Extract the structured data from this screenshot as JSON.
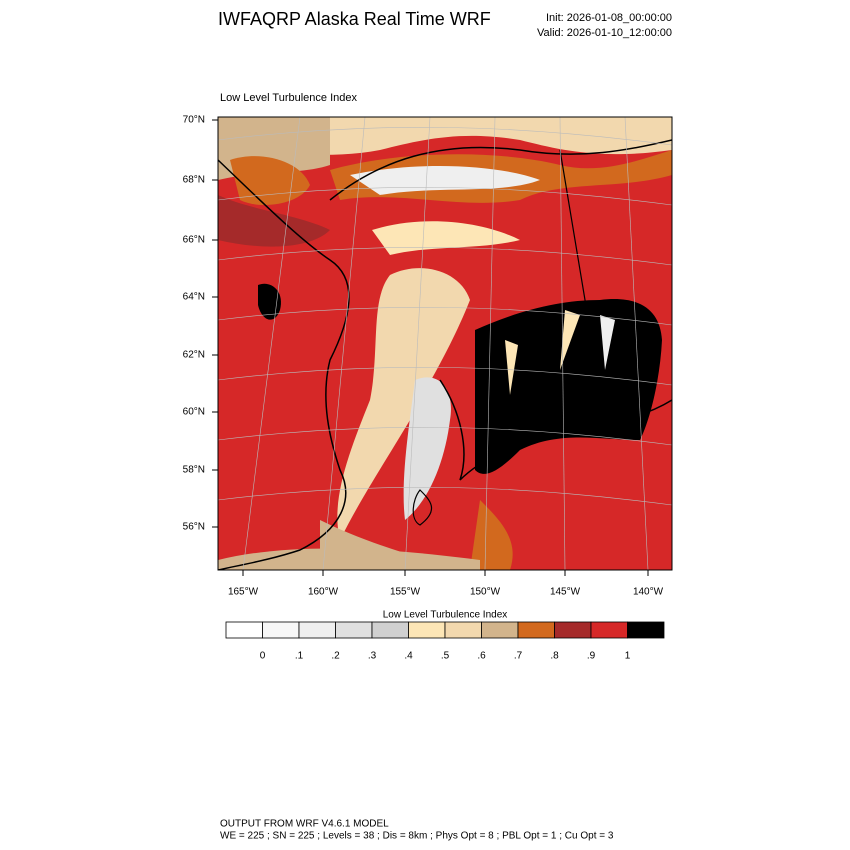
{
  "header": {
    "title": "IWFAQRP Alaska Real Time WRF",
    "init": "Init: 2026-01-08_00:00:00",
    "valid": "Valid: 2026-01-10_12:00:00"
  },
  "map": {
    "title": "Low Level Turbulence Index",
    "lat_labels": [
      "70°N",
      "68°N",
      "66°N",
      "64°N",
      "62°N",
      "60°N",
      "58°N",
      "56°N"
    ],
    "lon_labels": [
      "165°W",
      "160°W",
      "155°W",
      "150°W",
      "145°W",
      "140°W"
    ]
  },
  "colorbar": {
    "title": "Low Level Turbulence Index",
    "colors": [
      "#ffffff",
      "#f7f7f7",
      "#efefef",
      "#e0e0e0",
      "#d0d0d0",
      "#fde6b6",
      "#f2d8ae",
      "#d2b48c",
      "#d2691e",
      "#a52a2a",
      "#d62828",
      "#000000"
    ],
    "ticks": [
      0,
      {
        "value": 0.1,
        "label": ".1"
      },
      {
        "value": 0.2,
        "label": ".2"
      },
      {
        "value": 0.3,
        "label": ".3"
      },
      {
        "value": 0.4,
        "label": ".4"
      },
      {
        "value": 0.5,
        "label": ".5"
      },
      {
        "value": 0.6,
        "label": ".6"
      },
      {
        "value": 0.7,
        "label": ".7"
      },
      {
        "value": 0.8,
        "label": ".8"
      },
      {
        "value": 0.9,
        "label": ".9"
      },
      1
    ]
  },
  "footer": {
    "line1": "OUTPUT FROM WRF V4.6.1 MODEL",
    "line2": "WE = 225 ; SN = 225 ; Levels = 38 ; Dis = 8km ; Phys Opt = 8 ; PBL Opt = 1 ; Cu Opt = 3"
  }
}
